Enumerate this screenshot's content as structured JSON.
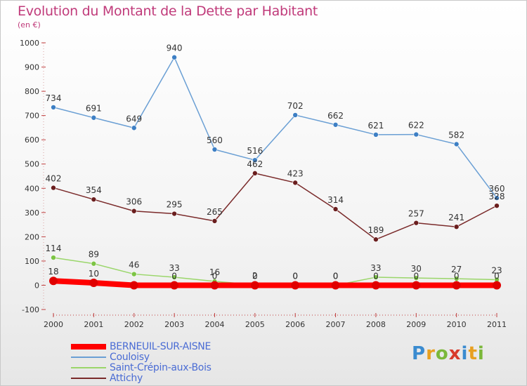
{
  "title": "Evolution du Montant de la Dette par Habitant",
  "subtitle": "(en €)",
  "logo": [
    "P",
    "r",
    "o",
    "x",
    "i",
    "t",
    "i"
  ],
  "chart_data": {
    "type": "line",
    "x": [
      "2000",
      "2001",
      "2002",
      "2003",
      "2004",
      "2005",
      "2006",
      "2007",
      "2008",
      "2009",
      "2010",
      "2011"
    ],
    "ylim": [
      -100,
      1000
    ],
    "yticks": [
      -100,
      0,
      100,
      200,
      300,
      400,
      500,
      600,
      700,
      800,
      900,
      1000
    ],
    "grid": false,
    "legend_position": "bottom-left",
    "series": [
      {
        "name": "BERNEUIL-SUR-AISNE",
        "color": "#ff0000",
        "marker_color": "#e00000",
        "thick": true,
        "values": [
          18,
          10,
          0,
          0,
          0,
          0,
          0,
          0,
          0,
          0,
          0,
          0
        ],
        "labels": [
          "18",
          "10",
          "",
          "",
          "",
          "",
          "",
          "",
          "",
          "",
          "",
          ""
        ]
      },
      {
        "name": "Couloisy",
        "color": "#6a9fd4",
        "marker_color": "#3d7fc4",
        "values": [
          734,
          691,
          649,
          940,
          560,
          516,
          702,
          662,
          621,
          622,
          582,
          360
        ],
        "labels": [
          "734",
          "691",
          "649",
          "940",
          "560",
          "516",
          "702",
          "662",
          "621",
          "622",
          "582",
          "360"
        ]
      },
      {
        "name": "Saint-Crépin-aux-Bois",
        "color": "#9ad66a",
        "marker_color": "#7cc444",
        "values": [
          114,
          89,
          46,
          33,
          16,
          2,
          0,
          0,
          33,
          30,
          27,
          23
        ],
        "labels": [
          "114",
          "89",
          "46",
          "33",
          "16",
          "2",
          "0",
          "0",
          "33",
          "30",
          "27",
          "23"
        ]
      },
      {
        "name": "Attichy",
        "color": "#7a2a2a",
        "marker_color": "#6a1e1e",
        "values": [
          402,
          354,
          306,
          295,
          265,
          462,
          423,
          314,
          189,
          257,
          241,
          328
        ],
        "labels": [
          "402",
          "354",
          "306",
          "295",
          "265",
          "462",
          "423",
          "314",
          "189",
          "257",
          "241",
          "328"
        ]
      }
    ],
    "extra_labels": [
      {
        "x": "2003",
        "text": "0"
      },
      {
        "x": "2004",
        "text": "0"
      },
      {
        "x": "2005",
        "text": "0"
      },
      {
        "x": "2006",
        "text": "0"
      },
      {
        "x": "2007",
        "text": "0"
      },
      {
        "x": "2008",
        "text": "0"
      },
      {
        "x": "2009",
        "text": "0"
      },
      {
        "x": "2010",
        "text": "0"
      },
      {
        "x": "2011",
        "text": "0"
      }
    ]
  }
}
